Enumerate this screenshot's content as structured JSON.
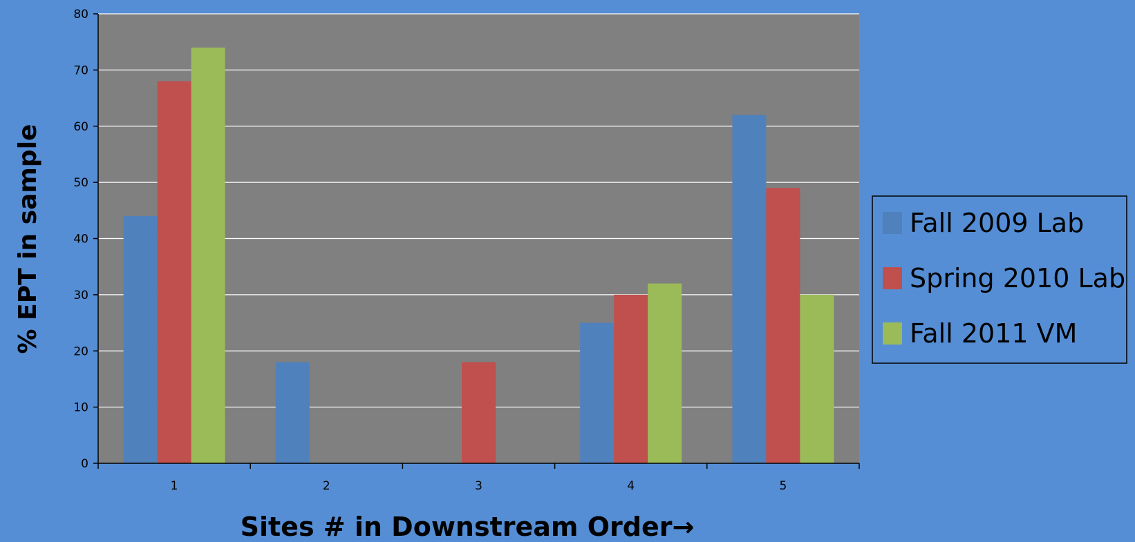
{
  "chart_data": {
    "type": "bar",
    "categories": [
      "1",
      "2",
      "3",
      "4",
      "5"
    ],
    "series": [
      {
        "name": "Fall 2009 Lab",
        "values": [
          44,
          18,
          0,
          25,
          62
        ],
        "color": "#4f81bd"
      },
      {
        "name": "Spring 2010 Lab",
        "values": [
          68,
          0,
          18,
          30,
          49
        ],
        "color": "#c0504d"
      },
      {
        "name": "Fall 2011 VM",
        "values": [
          74,
          0,
          0,
          32,
          30
        ],
        "color": "#9bbb59"
      }
    ],
    "xlabel": "Sites # in Downstream Order→",
    "ylabel": "% EPT in sample",
    "ylim": [
      0,
      80
    ],
    "yticks": [
      "0",
      "10",
      "20",
      "30",
      "40",
      "50",
      "60",
      "70",
      "80"
    ],
    "grid": true,
    "legend_position": "right",
    "plot_background": "#808080",
    "page_background": "#558ed5"
  }
}
